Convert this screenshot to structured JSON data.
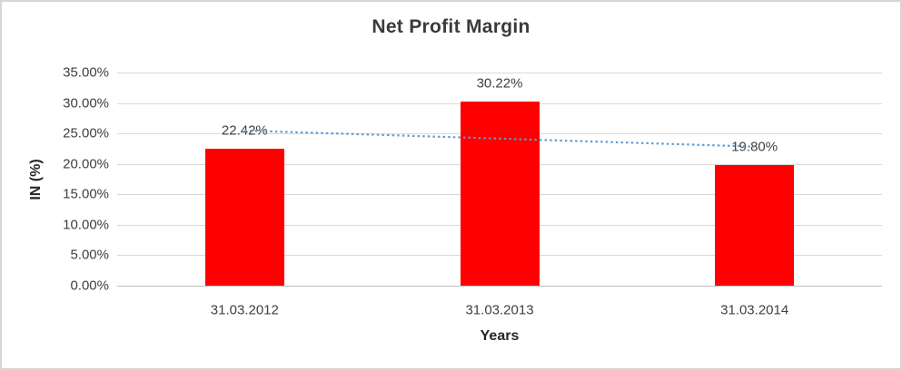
{
  "window": {
    "background_color": "#FFFFFF",
    "border_color": "#D6D6D6"
  },
  "chart_data": {
    "type": "bar",
    "title": "Net Profit Margin",
    "categories": [
      "31.03.2012",
      "31.03.2013",
      "31.03.2014"
    ],
    "values": [
      22.42,
      30.22,
      19.8
    ],
    "data_labels": [
      "22.42%",
      "30.22%",
      "19.80%"
    ],
    "xlabel": "Years",
    "ylabel": "IN (%)",
    "ylim": [
      0,
      35
    ],
    "yticks": [
      {
        "value": 35,
        "label": "35.00%"
      },
      {
        "value": 30,
        "label": "30.00%"
      },
      {
        "value": 25,
        "label": "25.00%"
      },
      {
        "value": 20,
        "label": "20.00%"
      },
      {
        "value": 15,
        "label": "15.00%"
      },
      {
        "value": 10,
        "label": "10.00%"
      },
      {
        "value": 5,
        "label": "5.00%"
      },
      {
        "value": 0,
        "label": "0.00%"
      }
    ],
    "grid": "horizontal",
    "legend": "none",
    "bar_color": "#FF0000",
    "gridline_color": "#D9D9D9",
    "axis_line_color": "#BFBFBF",
    "label_text_color": "#404040",
    "trendline": {
      "type": "linear",
      "style": "dotted",
      "color": "#5B9BD5",
      "start_value": 25.46,
      "end_value": 22.84
    }
  }
}
